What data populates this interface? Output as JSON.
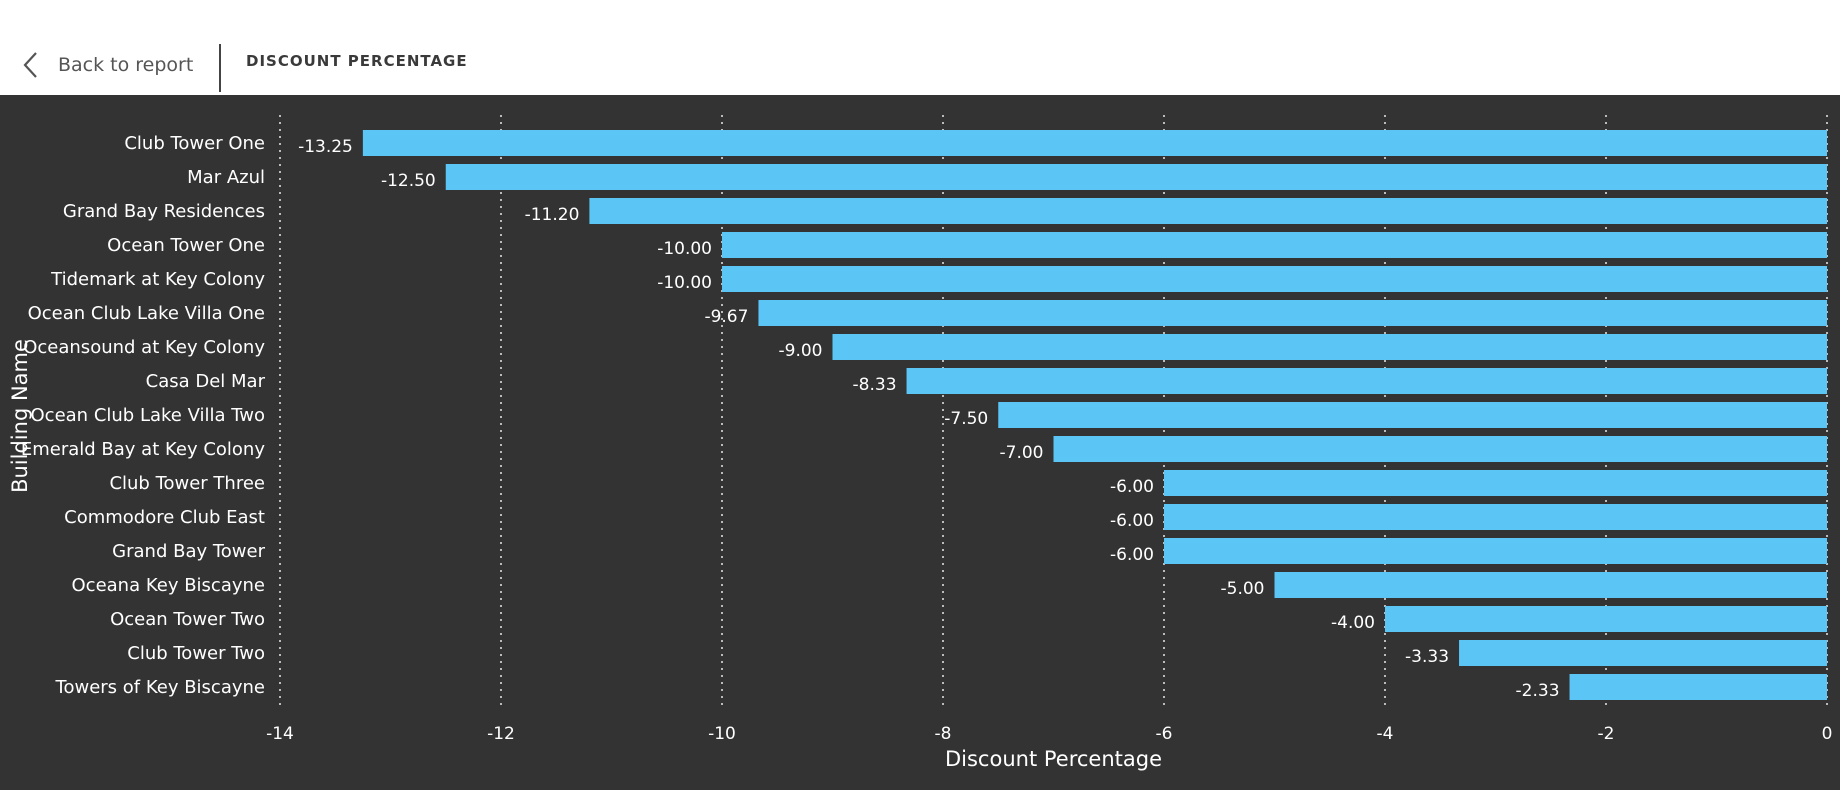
{
  "header": {
    "back_label": "Back to report",
    "title": "DISCOUNT PERCENTAGE"
  },
  "colors": {
    "bar": "#5BC5F5",
    "background": "#333333",
    "text": "#ffffff",
    "gridline": "#bbbbbb"
  },
  "chart_data": {
    "type": "bar",
    "orientation": "horizontal",
    "categories": [
      "Club Tower One",
      "Mar Azul",
      "Grand Bay Residences",
      "Ocean Tower One",
      "Tidemark at Key Colony",
      "Ocean Club Lake Villa One",
      "Oceansound at Key Colony",
      "Casa Del Mar",
      "Ocean Club Lake Villa Two",
      "Emerald Bay at Key Colony",
      "Club Tower Three",
      "Commodore Club East",
      "Grand Bay Tower",
      "Oceana Key Biscayne",
      "Ocean Tower Two",
      "Club Tower Two",
      "Towers of Key Biscayne"
    ],
    "values": [
      -13.25,
      -12.5,
      -11.2,
      -10.0,
      -10.0,
      -9.67,
      -9.0,
      -8.33,
      -7.5,
      -7.0,
      -6.0,
      -6.0,
      -6.0,
      -5.0,
      -4.0,
      -3.33,
      -2.33
    ],
    "value_labels": [
      "-13.25",
      "-12.50",
      "-11.20",
      "-10.00",
      "-10.00",
      "-9.67",
      "-9.00",
      "-8.33",
      "-7.50",
      "-7.00",
      "-6.00",
      "-6.00",
      "-6.00",
      "-5.00",
      "-4.00",
      "-3.33",
      "-2.33"
    ],
    "xlabel": "Discount Percentage",
    "ylabel": "Building Name",
    "xlim": [
      -14,
      0
    ],
    "xticks": [
      -14,
      -12,
      -10,
      -8,
      -6,
      -4,
      -2,
      0
    ],
    "grid": true
  }
}
